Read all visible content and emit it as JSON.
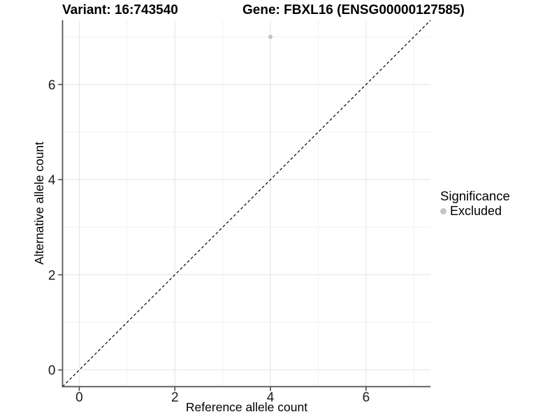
{
  "titles": {
    "variant": "Variant: 16:743540",
    "gene": "Gene: FBXL16 (ENSG00000127585)"
  },
  "chart_data": {
    "type": "scatter",
    "title": "Variant: 16:743540  Gene: FBXL16 (ENSG00000127585)",
    "xlabel": "Reference allele count",
    "ylabel": "Alternative allele count",
    "xlim": [
      -0.35,
      7.35
    ],
    "ylim": [
      -0.35,
      7.35
    ],
    "x_ticks": [
      0,
      2,
      4,
      6
    ],
    "y_ticks": [
      0,
      2,
      4,
      6
    ],
    "x_minor_gridlines": [
      1,
      3,
      5,
      7
    ],
    "y_minor_gridlines": [
      1,
      3,
      5,
      7
    ],
    "grid": true,
    "points": [
      {
        "x": 4,
        "y": 7,
        "series": "Excluded"
      }
    ],
    "identity_line": {
      "style": "dashed",
      "x1": -0.35,
      "y1": -0.35,
      "x2": 7.35,
      "y2": 7.35
    },
    "legend": {
      "title": "Significance",
      "position": "right",
      "items": [
        {
          "label": "Excluded",
          "color": "#c5c5c5"
        }
      ]
    }
  },
  "colors": {
    "background": "#ffffff",
    "grid_major": "#e4e4e4",
    "grid_minor": "#f1f1f1",
    "axis": "#4d4d4d",
    "identity_line": "#000000",
    "point": "#c5c5c5",
    "tick_text": "#1c1c1c"
  }
}
